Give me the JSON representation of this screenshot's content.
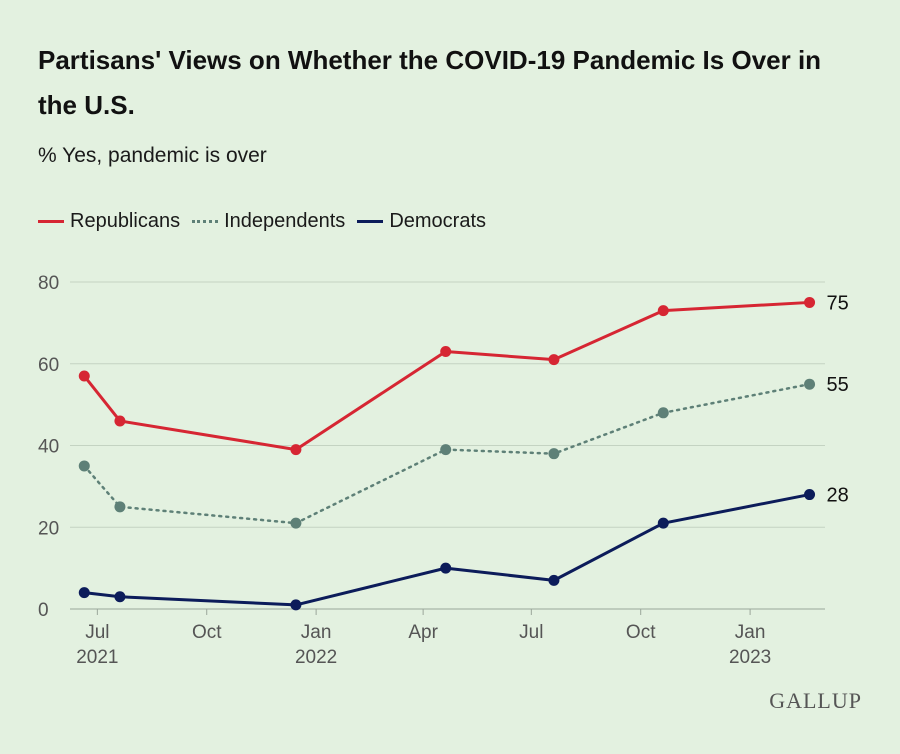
{
  "header": {
    "title": "Partisans' Views on Whether the COVID-19 Pandemic Is Over in the U.S.",
    "subtitle": "% Yes, pandemic is over"
  },
  "brand": "GALLUP",
  "colors": {
    "background": "#e3f1e0",
    "republicans": "#d62633",
    "independents": "#5e8077",
    "democrats": "#0c1c5a",
    "grid": "#c4d3c2"
  },
  "chart_data": {
    "type": "line",
    "title": "Partisans' Views on Whether the COVID-19 Pandemic Is Over in the U.S.",
    "subtitle": "% Yes, pandemic is over",
    "x": [
      "2021-06-20",
      "2021-07-20",
      "2021-12-15",
      "2022-04-20",
      "2022-07-20",
      "2022-10-20",
      "2023-02-20"
    ],
    "xlim": [
      "2021-06-08",
      "2023-03-05"
    ],
    "ylim": [
      0,
      80
    ],
    "yticks": [
      0,
      20,
      40,
      60,
      80
    ],
    "grid": true,
    "legend_position": "top-left",
    "xticks": [
      {
        "date": "2021-07-01",
        "line1": "Jul",
        "line2": "2021"
      },
      {
        "date": "2021-10-01",
        "line1": "Oct",
        "line2": ""
      },
      {
        "date": "2022-01-01",
        "line1": "Jan",
        "line2": "2022"
      },
      {
        "date": "2022-04-01",
        "line1": "Apr",
        "line2": ""
      },
      {
        "date": "2022-07-01",
        "line1": "Jul",
        "line2": ""
      },
      {
        "date": "2022-10-01",
        "line1": "Oct",
        "line2": ""
      },
      {
        "date": "2023-01-01",
        "line1": "Jan",
        "line2": "2023"
      }
    ],
    "series": [
      {
        "name": "Republicans",
        "key": "republicans",
        "color": "#d62633",
        "dash": "solid",
        "values": [
          57,
          46,
          39,
          63,
          61,
          73,
          75
        ],
        "end_label": "75"
      },
      {
        "name": "Independents",
        "key": "independents",
        "color": "#5e8077",
        "dash": "dotted",
        "values": [
          35,
          25,
          21,
          39,
          38,
          48,
          55
        ],
        "end_label": "55"
      },
      {
        "name": "Democrats",
        "key": "democrats",
        "color": "#0c1c5a",
        "dash": "solid",
        "values": [
          4,
          3,
          1,
          10,
          7,
          21,
          28
        ],
        "end_label": "28"
      }
    ]
  }
}
